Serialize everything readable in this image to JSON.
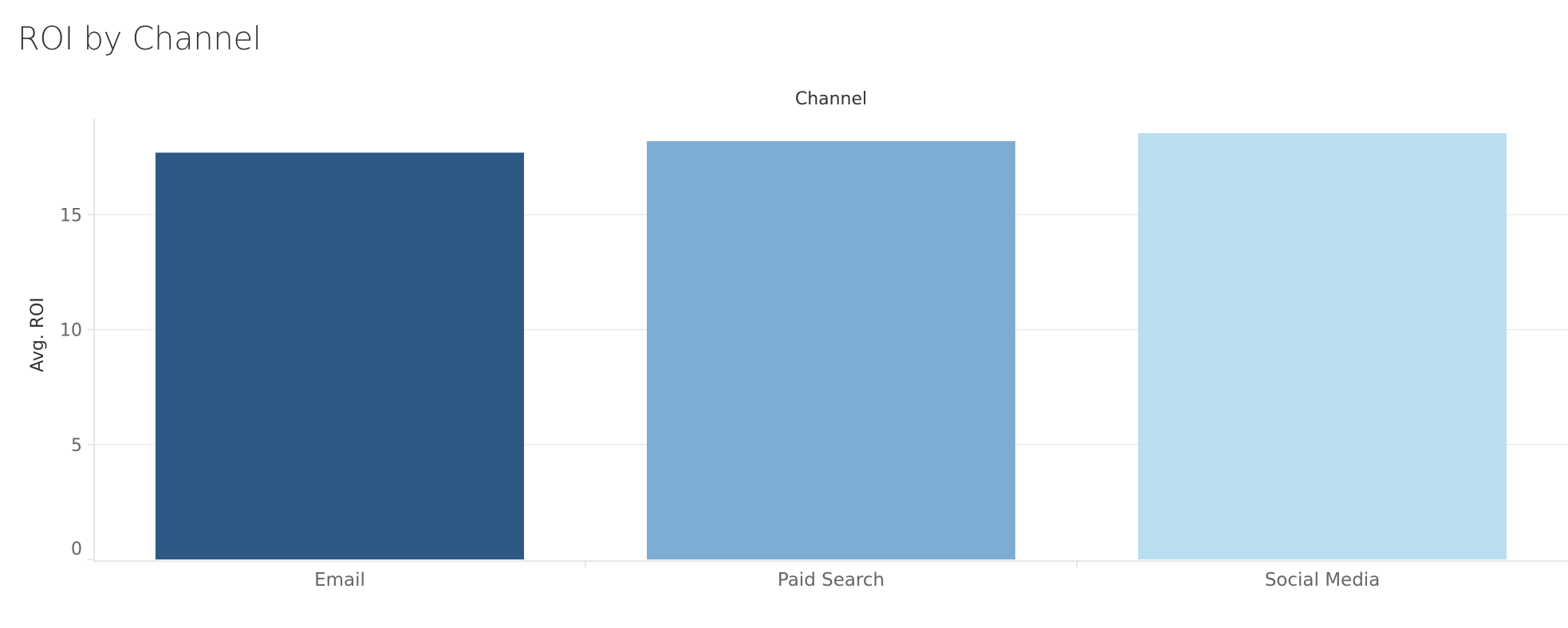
{
  "page": {
    "title": "ROI by Channel"
  },
  "chart_data": {
    "type": "bar",
    "title": "ROI by Channel",
    "column_header": "Channel",
    "xlabel": "",
    "ylabel": "Avg. ROI",
    "categories": [
      "Email",
      "Paid Search",
      "Social Media"
    ],
    "values": [
      17.7,
      18.2,
      18.55
    ],
    "colors": [
      "#2d5985",
      "#7eadd3",
      "#b9def0"
    ],
    "ylim": [
      0,
      18.55
    ],
    "yticks": [
      0,
      5,
      10,
      15
    ],
    "grid": true,
    "legend": "none"
  },
  "colors": {
    "text": "#333333",
    "tick_text": "#666666",
    "gridline": "#ebebeb",
    "axis_line": "#e0e0e0"
  }
}
